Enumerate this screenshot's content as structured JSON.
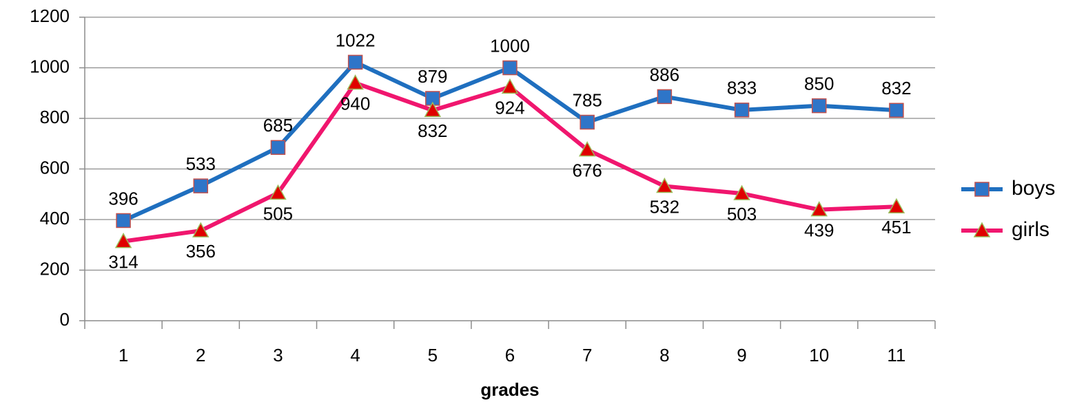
{
  "chart_data": {
    "type": "line",
    "x_label": "grades",
    "categories": [
      "1",
      "2",
      "3",
      "4",
      "5",
      "6",
      "7",
      "8",
      "9",
      "10",
      "11"
    ],
    "series": [
      {
        "name": "boys",
        "color": "#1f6fbf",
        "marker": "square",
        "marker_color": "#2e75c8",
        "marker_edge": "#c0504d",
        "values": [
          396,
          533,
          685,
          1022,
          879,
          1000,
          785,
          886,
          833,
          850,
          832
        ]
      },
      {
        "name": "girls",
        "color": "#f0166e",
        "marker": "triangle",
        "marker_color": "#e00000",
        "marker_edge": "#9bbb59",
        "values": [
          314,
          356,
          505,
          940,
          832,
          924,
          676,
          532,
          503,
          439,
          451
        ]
      }
    ],
    "ylim": [
      0,
      1200
    ],
    "yticks": [
      0,
      200,
      400,
      600,
      800,
      1000,
      1200
    ],
    "grid": true,
    "legend": "right"
  }
}
